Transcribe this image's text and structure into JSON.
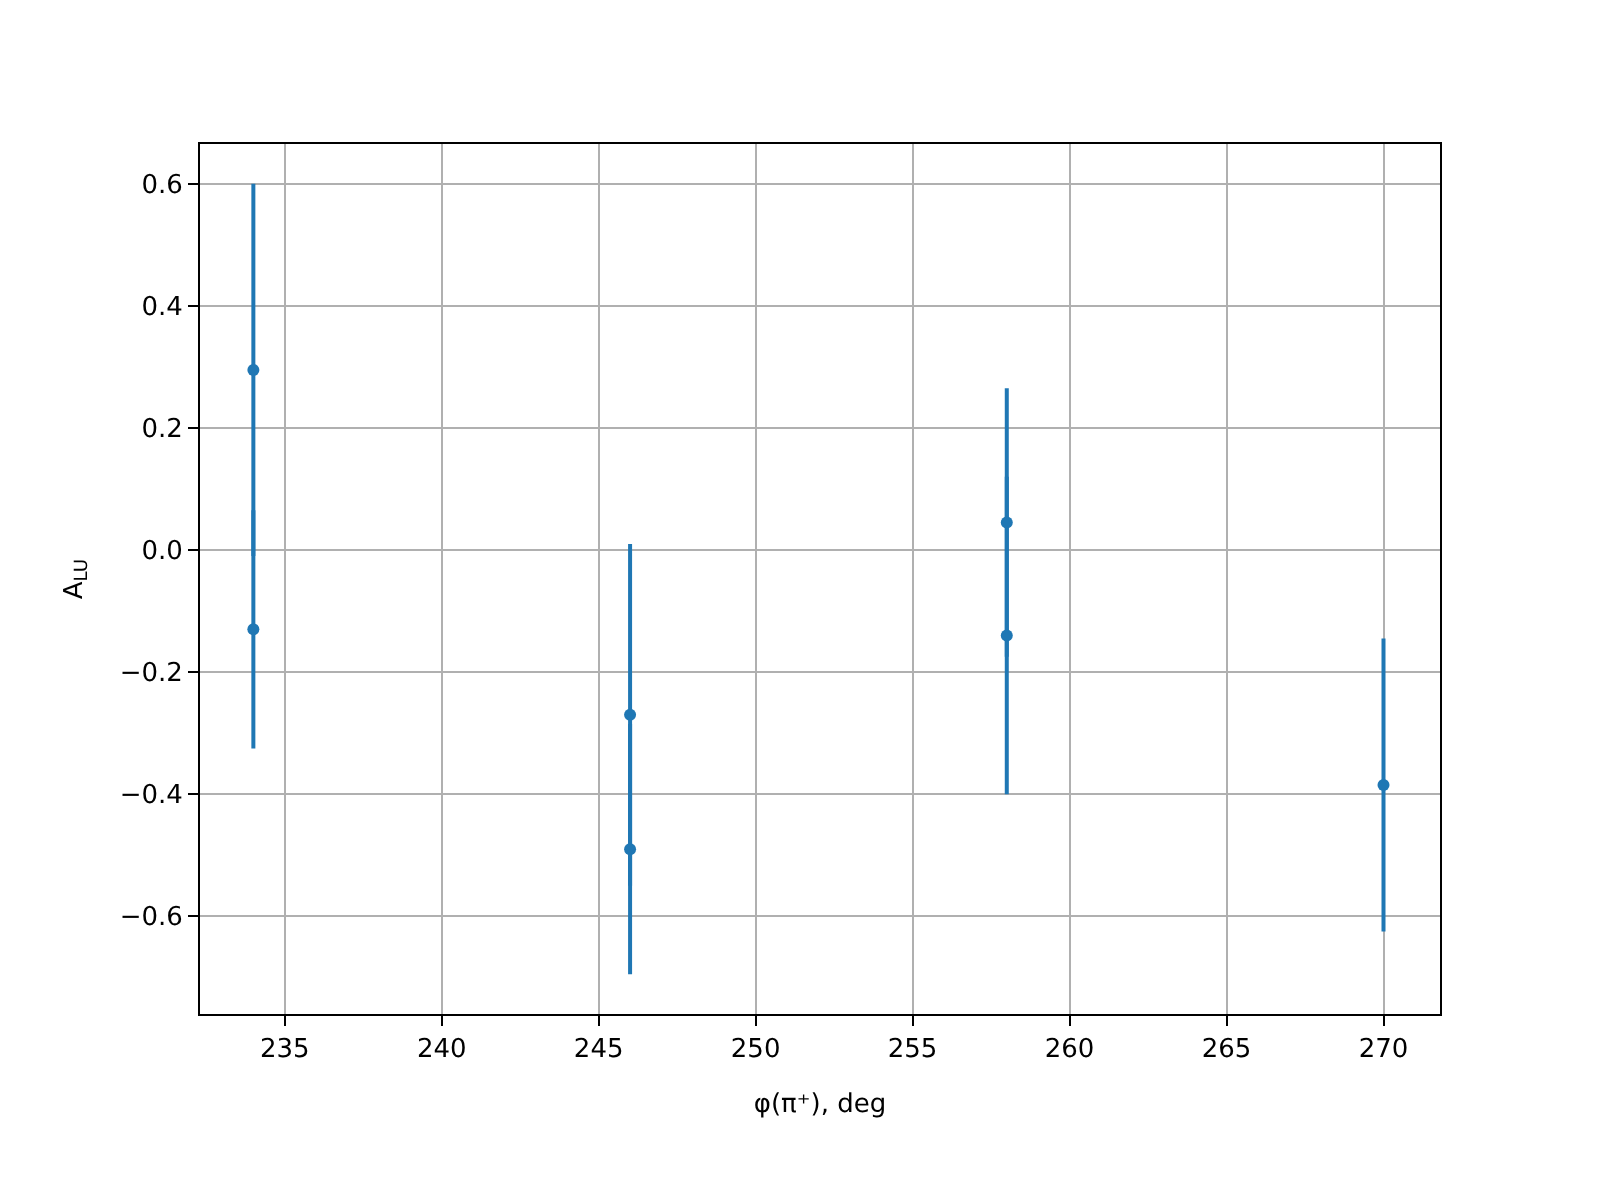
{
  "chart_data": {
    "type": "scatter",
    "xlabel": "φ(π⁺), deg",
    "ylabel": "A$_{LU}$",
    "x": [
      234,
      234,
      246,
      246,
      258,
      258,
      270
    ],
    "series": [
      {
        "color": "#1f77b4",
        "values": [
          0.295,
          -0.13,
          -0.27,
          -0.49,
          0.045,
          -0.14,
          -0.385
        ],
        "errors": [
          0.305,
          0.195,
          0.28,
          0.205,
          0.22,
          0.26,
          0.24
        ]
      }
    ],
    "xlim": [
      232.3,
      271.8
    ],
    "xticks": [
      235,
      240,
      245,
      250,
      255,
      260,
      265,
      270
    ],
    "ylim": [
      -0.76,
      0.665
    ],
    "yticks": [
      {
        "value": -0.6,
        "label": "−0.6"
      },
      {
        "value": -0.4,
        "label": "−0.4"
      },
      {
        "value": -0.2,
        "label": "−0.2"
      },
      {
        "value": 0,
        "label": "0.0"
      },
      {
        "value": 0.2,
        "label": "0.2"
      },
      {
        "value": 0.4,
        "label": "0.4"
      },
      {
        "value": 0.6,
        "label": "0.6"
      }
    ],
    "grid": true,
    "marker": "circle"
  }
}
